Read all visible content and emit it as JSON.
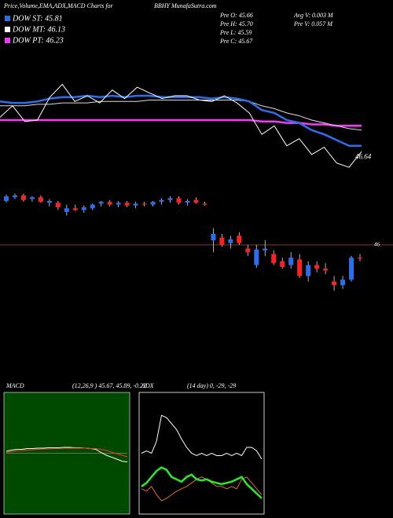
{
  "header": {
    "title": "Price,Volume,EMA,ADX,MACD Charts for",
    "source": "BBHY MunafaSutra.com",
    "legend": [
      "DOW ST: 45.81",
      "DOW MT: 46.13",
      "DOW PT: 46.23"
    ],
    "stats_left": [
      "Pre  O: 45.66",
      "Pre  H: 45.70",
      "Pre  L: 45.59",
      "Pre  C: 45.67"
    ],
    "stats_right": [
      "Avg  V: 0.003 M",
      "Pre   V: 0.057 M"
    ]
  },
  "chart_data": [
    {
      "type": "line",
      "ylim": [
        46.55,
        47.4
      ],
      "yticks": [
        46.64
      ],
      "series": [
        {
          "name": "DOW PT",
          "color": "#ff33ff",
          "width": 2.5,
          "values": [
            46.89,
            46.89,
            46.89,
            46.89,
            46.89,
            46.89,
            46.89,
            46.89,
            46.89,
            46.89,
            46.89,
            46.89,
            46.89,
            46.89,
            46.89,
            46.89,
            46.89,
            46.89,
            46.89,
            46.89,
            46.89,
            46.88,
            46.88,
            46.87,
            46.87,
            46.86,
            46.86,
            46.85,
            46.85,
            46.85
          ]
        },
        {
          "name": "DOW MT",
          "color": "#dddddd",
          "width": 1,
          "values": [
            46.99,
            46.99,
            46.99,
            47.0,
            47.0,
            47.01,
            47.01,
            47.01,
            47.02,
            47.02,
            47.02,
            47.02,
            47.03,
            47.03,
            47.03,
            47.03,
            47.03,
            47.03,
            47.03,
            47.03,
            47.02,
            46.99,
            46.97,
            46.94,
            46.92,
            46.89,
            46.87,
            46.85,
            46.83,
            46.82
          ]
        },
        {
          "name": "DOW ST",
          "color": "#2a6ff0",
          "width": 2.5,
          "values": [
            47.02,
            47.01,
            47.01,
            47.02,
            47.04,
            47.05,
            47.05,
            47.06,
            47.05,
            47.06,
            47.05,
            47.06,
            47.06,
            47.05,
            47.05,
            47.05,
            47.05,
            47.04,
            47.05,
            47.04,
            47.02,
            46.96,
            46.94,
            46.89,
            46.87,
            46.82,
            46.79,
            46.75,
            46.71,
            46.71
          ]
        },
        {
          "name": "Price",
          "color": "#ffffff",
          "width": 1,
          "values": [
            46.91,
            46.99,
            46.88,
            46.89,
            47.05,
            47.14,
            47.02,
            47.06,
            47.01,
            47.1,
            47.04,
            47.12,
            47.08,
            47.04,
            47.06,
            47.06,
            47.03,
            47.02,
            47.06,
            47.01,
            46.94,
            46.79,
            46.85,
            46.71,
            46.76,
            46.65,
            46.7,
            46.59,
            46.56,
            46.67
          ]
        }
      ]
    },
    {
      "type": "candlestick",
      "ylim": [
        45.4,
        46.6
      ],
      "yticks": [
        46
      ],
      "up_color": "#2a6ff0",
      "down_color": "#ff2020",
      "open": [
        46.48,
        46.52,
        46.54,
        46.5,
        46.52,
        46.46,
        46.46,
        46.36,
        46.4,
        46.38,
        46.4,
        46.45,
        46.47,
        46.44,
        46.46,
        46.43,
        46.45,
        46.44,
        46.47,
        46.49,
        46.51,
        46.46,
        46.49,
        46.45,
        46.05,
        46.08,
        46.02,
        46.1,
        45.96,
        45.78,
        45.94,
        45.9,
        45.82,
        45.78,
        45.84,
        45.66,
        45.78,
        45.74,
        45.6,
        45.56,
        45.62,
        45.86
      ],
      "high": [
        46.55,
        46.56,
        46.56,
        46.53,
        46.54,
        46.5,
        46.48,
        46.44,
        46.44,
        46.43,
        46.45,
        46.48,
        46.49,
        46.48,
        46.48,
        46.47,
        46.47,
        46.48,
        46.51,
        46.53,
        46.53,
        46.5,
        46.52,
        46.47,
        46.18,
        46.12,
        46.1,
        46.14,
        46.0,
        46.0,
        46.05,
        45.94,
        45.86,
        45.92,
        45.9,
        45.82,
        45.82,
        45.8,
        45.66,
        45.66,
        45.88,
        45.9
      ],
      "low": [
        46.46,
        46.5,
        46.47,
        46.47,
        46.46,
        46.42,
        46.38,
        46.32,
        46.37,
        46.35,
        46.38,
        46.42,
        46.42,
        46.41,
        46.41,
        46.4,
        46.42,
        46.42,
        46.44,
        46.46,
        46.44,
        46.43,
        46.45,
        46.43,
        45.92,
        45.98,
        45.96,
        46.0,
        45.88,
        45.75,
        45.88,
        45.78,
        45.74,
        45.74,
        45.64,
        45.6,
        45.7,
        45.68,
        45.5,
        45.52,
        45.6,
        45.82
      ],
      "close": [
        46.53,
        46.54,
        46.49,
        46.52,
        46.47,
        46.48,
        46.41,
        46.4,
        46.38,
        46.41,
        46.44,
        46.47,
        46.44,
        46.46,
        46.43,
        46.45,
        46.44,
        46.47,
        46.49,
        46.51,
        46.46,
        46.48,
        46.46,
        46.44,
        46.12,
        46.0,
        46.06,
        46.02,
        45.92,
        45.95,
        45.96,
        45.8,
        45.76,
        45.86,
        45.66,
        45.78,
        45.74,
        45.72,
        45.56,
        45.62,
        45.86,
        45.85
      ]
    },
    {
      "type": "line",
      "title": "MACD",
      "subtitle": "(12,26,9 ) 45.67, 45.89, -0.22",
      "ylim": [
        -1.5,
        1.5
      ],
      "series": [
        {
          "name": "MACD",
          "color": "#ffffff",
          "width": 1,
          "values": [
            0.05,
            0.08,
            0.1,
            0.1,
            0.12,
            0.12,
            0.13,
            0.13,
            0.14,
            0.14,
            0.14,
            0.15,
            0.15,
            0.14,
            0.14,
            0.13,
            0.12,
            0.1,
            0.02,
            -0.05,
            -0.1,
            -0.15,
            -0.2,
            -0.22
          ]
        },
        {
          "name": "Signal",
          "color": "#ff3030",
          "width": 1,
          "values": [
            0.02,
            0.04,
            0.06,
            0.07,
            0.08,
            0.09,
            0.1,
            0.11,
            0.11,
            0.12,
            0.12,
            0.13,
            0.13,
            0.13,
            0.13,
            0.13,
            0.12,
            0.12,
            0.1,
            0.07,
            0.03,
            -0.01,
            -0.05,
            -0.09
          ]
        }
      ]
    },
    {
      "type": "line",
      "title": "ADX",
      "subtitle": "(14 day) 0, -29, -29",
      "ylim": [
        0,
        100
      ],
      "series": [
        {
          "name": "DI+",
          "color": "#ffffff",
          "width": 1,
          "values": [
            50,
            52,
            50,
            60,
            82,
            80,
            75,
            70,
            62,
            55,
            50,
            48,
            50,
            48,
            50,
            48,
            48,
            50,
            48,
            50,
            48,
            55,
            55,
            52,
            45
          ]
        },
        {
          "name": "DI-",
          "color": "#e07020",
          "width": 1,
          "values": [
            20,
            18,
            22,
            15,
            10,
            12,
            15,
            18,
            20,
            22,
            25,
            28,
            30,
            28,
            25,
            22,
            22,
            20,
            22,
            20,
            28,
            30,
            25,
            20,
            15
          ]
        },
        {
          "name": "ADX",
          "color": "#22ee22",
          "width": 2.5,
          "values": [
            22,
            25,
            30,
            35,
            38,
            36,
            30,
            28,
            26,
            30,
            32,
            28,
            27,
            28,
            26,
            25,
            24,
            25,
            26,
            28,
            30,
            24,
            20,
            16,
            12
          ]
        }
      ]
    }
  ]
}
